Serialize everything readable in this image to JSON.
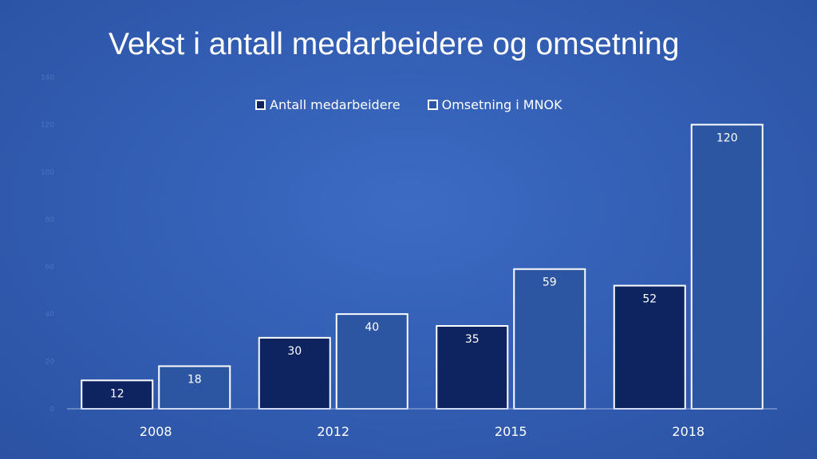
{
  "title": "Vekst i antall medarbeidere og omsetning",
  "chart_data": {
    "type": "bar",
    "title": "Vekst i antall medarbeidere og omsetning",
    "xlabel": "",
    "ylabel": "",
    "categories": [
      "2008",
      "2012",
      "2015",
      "2018"
    ],
    "series": [
      {
        "name": "Antall medarbeidere",
        "values": [
          12,
          30,
          35,
          52
        ],
        "color": "#0d2461"
      },
      {
        "name": "Omsetning i MNOK",
        "values": [
          18,
          40,
          59,
          120
        ],
        "color": "#2d56a2"
      }
    ],
    "ylim": [
      0,
      140
    ],
    "yticks": [
      "0",
      "20",
      "40",
      "60",
      "80",
      "100",
      "120",
      "140"
    ],
    "legend": "top-center",
    "grid": false,
    "bar_border_color": "#ffffff"
  }
}
